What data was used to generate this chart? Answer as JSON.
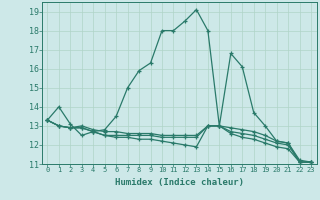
{
  "xlabel": "Humidex (Indice chaleur)",
  "ylabel": "",
  "xlim": [
    -0.5,
    23.5
  ],
  "ylim": [
    11,
    19.5
  ],
  "xticks": [
    0,
    1,
    2,
    3,
    4,
    5,
    6,
    7,
    8,
    9,
    10,
    11,
    12,
    13,
    14,
    15,
    16,
    17,
    18,
    19,
    20,
    21,
    22,
    23
  ],
  "yticks": [
    11,
    12,
    13,
    14,
    15,
    16,
    17,
    18,
    19
  ],
  "bg_color": "#cde8e8",
  "grid_color": "#b0d4c8",
  "line_color": "#2a7a6a",
  "lines": [
    {
      "x": [
        0,
        1,
        2,
        3,
        4,
        5,
        6,
        7,
        8,
        9,
        10,
        11,
        12,
        13,
        14,
        15,
        16,
        17,
        18,
        19,
        20,
        21,
        22,
        23
      ],
      "y": [
        13.3,
        14.0,
        13.1,
        12.5,
        12.7,
        12.8,
        13.5,
        15.0,
        15.9,
        16.3,
        18.0,
        18.0,
        18.5,
        19.1,
        18.0,
        13.0,
        16.8,
        16.1,
        13.7,
        13.0,
        12.2,
        12.1,
        11.1,
        11.1
      ]
    },
    {
      "x": [
        0,
        1,
        2,
        3,
        4,
        5,
        6,
        7,
        8,
        9,
        10,
        11,
        12,
        13,
        14,
        15,
        16,
        17,
        18,
        19,
        20,
        21,
        22,
        23
      ],
      "y": [
        13.3,
        13.0,
        12.9,
        13.0,
        12.8,
        12.7,
        12.7,
        12.6,
        12.6,
        12.6,
        12.5,
        12.5,
        12.5,
        12.5,
        13.0,
        13.0,
        12.9,
        12.8,
        12.7,
        12.5,
        12.2,
        12.1,
        11.2,
        11.1
      ]
    },
    {
      "x": [
        0,
        1,
        2,
        3,
        4,
        5,
        6,
        7,
        8,
        9,
        10,
        11,
        12,
        13,
        14,
        15,
        16,
        17,
        18,
        19,
        20,
        21,
        22,
        23
      ],
      "y": [
        13.3,
        13.0,
        12.9,
        12.9,
        12.7,
        12.5,
        12.5,
        12.5,
        12.5,
        12.5,
        12.4,
        12.4,
        12.4,
        12.4,
        13.0,
        13.0,
        12.7,
        12.6,
        12.5,
        12.3,
        12.1,
        12.0,
        11.1,
        11.1
      ]
    },
    {
      "x": [
        0,
        1,
        2,
        3,
        4,
        5,
        6,
        7,
        8,
        9,
        10,
        11,
        12,
        13,
        14,
        15,
        16,
        17,
        18,
        19,
        20,
        21,
        22,
        23
      ],
      "y": [
        13.3,
        13.0,
        12.9,
        12.9,
        12.7,
        12.5,
        12.4,
        12.4,
        12.3,
        12.3,
        12.2,
        12.1,
        12.0,
        11.9,
        13.0,
        13.0,
        12.6,
        12.4,
        12.3,
        12.1,
        11.9,
        11.8,
        11.1,
        11.1
      ]
    }
  ],
  "marker": "+"
}
